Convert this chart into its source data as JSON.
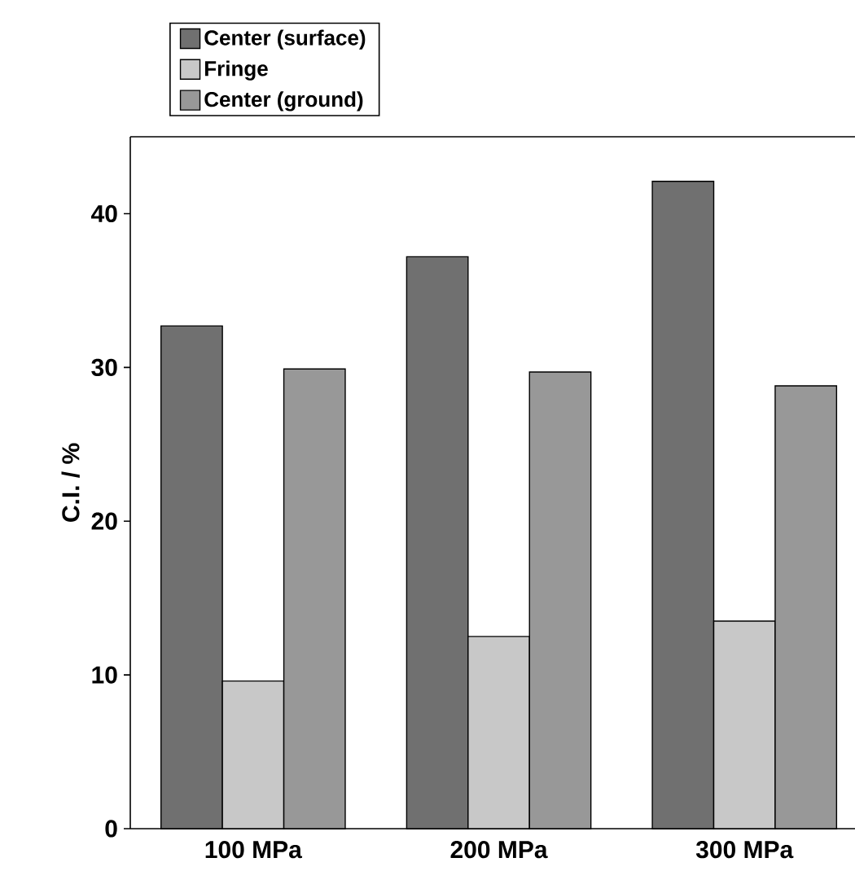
{
  "chart_data": {
    "type": "bar",
    "ylabel": "C.I. / %",
    "categories": [
      "100 MPa",
      "200 MPa",
      "300 MPa"
    ],
    "series": [
      {
        "name": "Center (surface)",
        "color": "#707070",
        "values": [
          32.7,
          37.2,
          42.1
        ]
      },
      {
        "name": "Fringe",
        "color": "#c8c8c8",
        "values": [
          9.6,
          12.5,
          13.5
        ]
      },
      {
        "name": "Center (ground)",
        "color": "#989898",
        "values": [
          29.9,
          29.7,
          28.8
        ]
      }
    ],
    "ylim": [
      0,
      45
    ],
    "yticks": [
      0,
      10,
      20,
      30,
      40
    ],
    "grid": false,
    "legend": "top left"
  }
}
